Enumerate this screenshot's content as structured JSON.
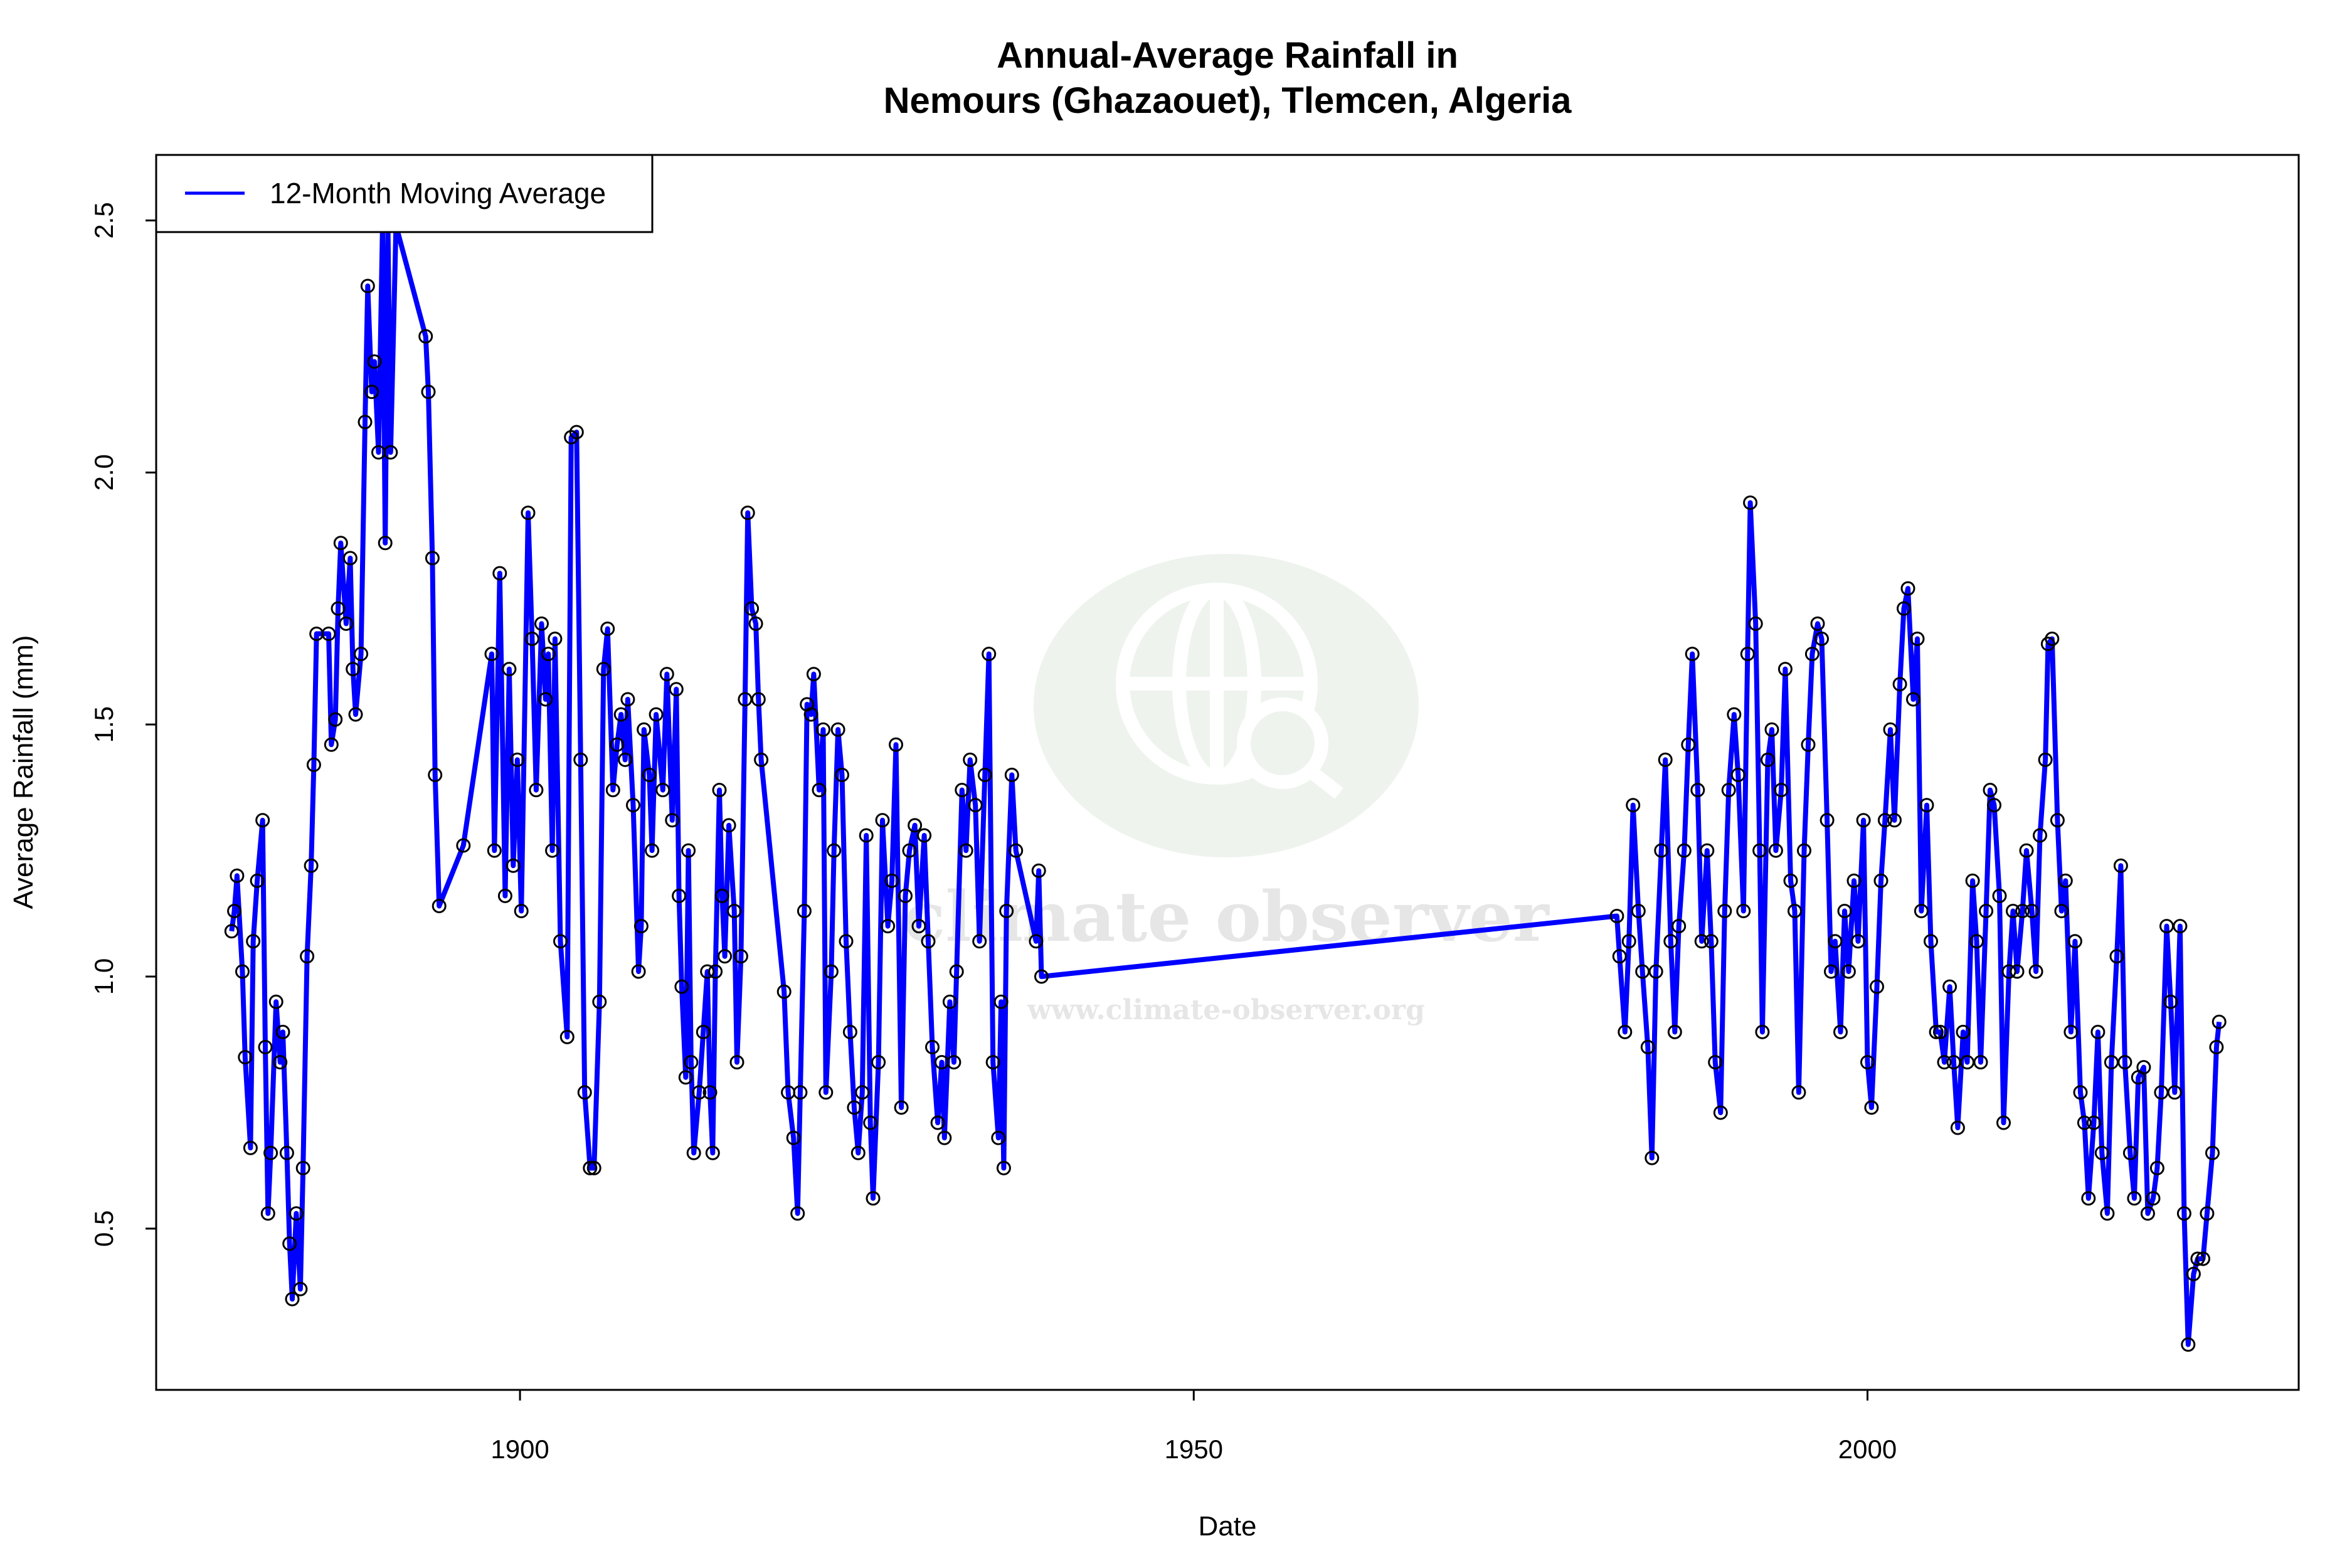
{
  "chart_data": {
    "type": "line",
    "title": "Annual-Average Rainfall in",
    "subtitle": "Nemours (Ghazaouet), Tlemcen, Algeria",
    "xlabel": "Date",
    "ylabel": "Average Rainfall (mm)",
    "xlim": [
      1873,
      2032
    ],
    "ylim": [
      0.18,
      2.63
    ],
    "x_ticks": [
      1900,
      1950,
      2000
    ],
    "x_tick_labels": [
      "1900",
      "1950",
      "2000"
    ],
    "y_ticks": [
      0.5,
      1.0,
      1.5,
      2.0,
      2.5
    ],
    "y_tick_labels": [
      "0.5",
      "1.0",
      "1.5",
      "2.0",
      "2.5"
    ],
    "grid": false,
    "legend": {
      "placement": "top-left",
      "entries": [
        "12-Month Moving Average"
      ]
    },
    "colors": {
      "line": "#0000ff",
      "points": "#000000",
      "watermark": "#eef3ee"
    },
    "watermark": {
      "text": "climate observer",
      "url": "www.climate-observer.org"
    },
    "series": [
      {
        "name": "12-Month Moving Average",
        "x": [
          1878.6,
          1878.8,
          1879.0,
          1879.4,
          1879.6,
          1880.0,
          1880.2,
          1880.5,
          1880.9,
          1881.1,
          1881.3,
          1881.5,
          1881.9,
          1882.2,
          1882.4,
          1882.7,
          1882.9,
          1883.1,
          1883.4,
          1883.7,
          1883.9,
          1884.2,
          1884.5,
          1884.7,
          1884.9,
          1885.8,
          1886.0,
          1886.3,
          1886.5,
          1886.7,
          1887.1,
          1887.4,
          1887.6,
          1887.8,
          1888.2,
          1888.5,
          1888.7,
          1889.0,
          1889.2,
          1889.5,
          1889.8,
          1890.0,
          1890.2,
          1890.4,
          1890.8,
          1893.0,
          1893.2,
          1893.5,
          1893.7,
          1894.0,
          1895.8,
          1897.9,
          1898.1,
          1898.5,
          1898.9,
          1899.2,
          1899.5,
          1899.8,
          1900.1,
          1900.6,
          1900.9,
          1901.2,
          1901.6,
          1901.9,
          1902.1,
          1902.4,
          1902.6,
          1903.0,
          1903.5,
          1903.8,
          1904.2,
          1904.5,
          1904.8,
          1905.2,
          1905.5,
          1905.9,
          1906.2,
          1906.5,
          1906.9,
          1907.2,
          1907.5,
          1907.8,
          1908.0,
          1908.4,
          1908.8,
          1909.0,
          1909.2,
          1909.6,
          1909.8,
          1910.1,
          1910.6,
          1910.9,
          1911.3,
          1911.6,
          1911.8,
          1912.0,
          1912.3,
          1912.5,
          1912.7,
          1912.9,
          1913.3,
          1913.6,
          1913.9,
          1914.1,
          1914.3,
          1914.5,
          1914.8,
          1915.0,
          1915.2,
          1915.5,
          1915.9,
          1916.1,
          1916.4,
          1916.7,
          1916.9,
          1917.2,
          1917.5,
          1917.7,
          1917.9,
          1919.6,
          1919.9,
          1920.3,
          1920.6,
          1920.8,
          1921.1,
          1921.3,
          1921.6,
          1921.8,
          1922.2,
          1922.5,
          1922.7,
          1923.1,
          1923.3,
          1923.6,
          1923.9,
          1924.2,
          1924.5,
          1924.8,
          1925.1,
          1925.4,
          1925.7,
          1926.0,
          1926.2,
          1926.6,
          1926.9,
          1927.3,
          1927.6,
          1927.9,
          1928.3,
          1928.6,
          1928.9,
          1929.3,
          1929.6,
          1930.0,
          1930.3,
          1930.6,
          1931.0,
          1931.3,
          1931.5,
          1931.9,
          1932.2,
          1932.4,
          1932.8,
          1933.1,
          1933.4,
          1933.8,
          1934.1,
          1934.5,
          1934.8,
          1935.1,
          1935.5,
          1935.7,
          1935.9,
          1936.1,
          1936.5,
          1936.8,
          1938.3,
          1938.5,
          1938.7,
          1981.4,
          1981.6,
          1982.0,
          1982.3,
          1982.6,
          1983.0,
          1983.3,
          1983.7,
          1984.0,
          1984.3,
          1984.7,
          1985.0,
          1985.4,
          1985.7,
          1986.0,
          1986.4,
          1986.7,
          1987.0,
          1987.4,
          1987.7,
          1988.1,
          1988.4,
          1988.7,
          1989.1,
          1989.4,
          1989.7,
          1990.1,
          1990.4,
          1990.8,
          1991.1,
          1991.3,
          1991.7,
          1992.0,
          1992.2,
          1992.6,
          1992.9,
          1993.2,
          1993.6,
          1993.9,
          1994.3,
          1994.6,
          1994.9,
          1995.3,
          1995.6,
          1995.9,
          1996.3,
          1996.6,
          1997.0,
          1997.3,
          1997.6,
          1998.0,
          1998.3,
          1998.6,
          1999.0,
          1999.3,
          1999.7,
          2000.0,
          2000.3,
          2000.7,
          2001.0,
          2001.3,
          2001.7,
          2002.0,
          2002.4,
          2002.7,
          2003.0,
          2003.4,
          2003.7,
          2004.0,
          2004.4,
          2004.7,
          2005.1,
          2005.4,
          2005.7,
          2006.1,
          2006.4,
          2006.7,
          2007.1,
          2007.4,
          2007.8,
          2008.1,
          2008.4,
          2008.8,
          2009.1,
          2009.4,
          2009.8,
          2010.1,
          2010.5,
          2010.8,
          2011.1,
          2011.5,
          2011.8,
          2012.2,
          2012.5,
          2012.8,
          2013.2,
          2013.4,
          2013.7,
          2014.1,
          2014.4,
          2014.7,
          2015.1,
          2015.4,
          2015.8,
          2016.1,
          2016.4,
          2016.8,
          2017.1,
          2017.4,
          2017.8,
          2018.1,
          2018.5,
          2018.8,
          2019.1,
          2019.5,
          2019.8,
          2020.1,
          2020.5,
          2020.8,
          2021.2,
          2021.5,
          2021.8,
          2022.2,
          2022.5,
          2022.8,
          2023.2,
          2023.5,
          2023.8,
          2024.2,
          2024.5,
          2024.9,
          2025.2,
          2025.6,
          2025.9,
          2026.1
        ],
        "y": [
          1.09,
          1.13,
          1.2,
          1.01,
          0.84,
          0.66,
          1.07,
          1.19,
          1.31,
          0.86,
          0.53,
          0.65,
          0.95,
          0.83,
          0.89,
          0.65,
          0.47,
          0.36,
          0.53,
          0.38,
          0.62,
          1.04,
          1.22,
          1.42,
          1.68,
          1.68,
          1.46,
          1.51,
          1.73,
          1.86,
          1.7,
          1.83,
          1.61,
          1.52,
          1.64,
          2.1,
          2.37,
          2.16,
          2.22,
          2.04,
          2.49,
          1.86,
          2.49,
          2.04,
          2.49,
          2.27,
          2.16,
          1.83,
          1.4,
          1.14,
          1.26,
          1.64,
          1.25,
          1.8,
          1.16,
          1.61,
          1.22,
          1.43,
          1.13,
          1.92,
          1.67,
          1.37,
          1.7,
          1.55,
          1.64,
          1.25,
          1.67,
          1.07,
          0.88,
          2.07,
          2.08,
          1.43,
          0.77,
          0.62,
          0.62,
          0.95,
          1.61,
          1.69,
          1.37,
          1.46,
          1.52,
          1.43,
          1.55,
          1.34,
          1.01,
          1.1,
          1.49,
          1.4,
          1.25,
          1.52,
          1.37,
          1.6,
          1.31,
          1.57,
          1.16,
          0.98,
          0.8,
          1.25,
          0.83,
          0.65,
          0.77,
          0.89,
          1.01,
          0.77,
          0.65,
          1.01,
          1.37,
          1.16,
          1.04,
          1.3,
          1.13,
          0.83,
          1.04,
          1.55,
          1.92,
          1.73,
          1.7,
          1.55,
          1.43,
          0.97,
          0.77,
          0.68,
          0.53,
          0.77,
          1.13,
          1.54,
          1.52,
          1.6,
          1.37,
          1.49,
          0.77,
          1.01,
          1.25,
          1.49,
          1.4,
          1.07,
          0.89,
          0.74,
          0.65,
          0.77,
          1.28,
          0.71,
          0.56,
          0.83,
          1.31,
          1.1,
          1.19,
          1.46,
          0.74,
          1.16,
          1.25,
          1.3,
          1.1,
          1.28,
          1.07,
          0.86,
          0.71,
          0.83,
          0.68,
          0.95,
          0.83,
          1.01,
          1.37,
          1.25,
          1.43,
          1.34,
          1.07,
          1.4,
          1.64,
          0.83,
          0.68,
          0.95,
          0.62,
          1.13,
          1.4,
          1.25,
          1.07,
          1.21,
          1.0,
          1.12,
          1.04,
          0.89,
          1.07,
          1.34,
          1.13,
          1.01,
          0.86,
          0.64,
          1.01,
          1.25,
          1.43,
          1.07,
          0.89,
          1.1,
          1.25,
          1.46,
          1.64,
          1.37,
          1.07,
          1.25,
          1.07,
          0.83,
          0.73,
          1.13,
          1.37,
          1.52,
          1.4,
          1.13,
          1.64,
          1.94,
          1.7,
          1.25,
          0.89,
          1.43,
          1.49,
          1.25,
          1.37,
          1.61,
          1.19,
          1.13,
          0.77,
          1.25,
          1.46,
          1.64,
          1.7,
          1.67,
          1.31,
          1.01,
          1.07,
          0.89,
          1.13,
          1.01,
          1.19,
          1.07,
          1.31,
          0.83,
          0.74,
          0.98,
          1.19,
          1.31,
          1.49,
          1.31,
          1.58,
          1.73,
          1.77,
          1.55,
          1.67,
          1.13,
          1.34,
          1.07,
          0.89,
          0.89,
          0.83,
          0.98,
          0.83,
          0.7,
          0.89,
          0.83,
          1.19,
          1.07,
          0.83,
          1.13,
          1.37,
          1.34,
          1.16,
          0.71,
          1.01,
          1.13,
          1.01,
          1.13,
          1.25,
          1.13,
          1.01,
          1.28,
          1.43,
          1.66,
          1.67,
          1.31,
          1.13,
          1.19,
          0.89,
          1.07,
          0.77,
          0.71,
          0.56,
          0.71,
          0.89,
          0.65,
          0.53,
          0.83,
          1.04,
          1.22,
          0.83,
          0.65,
          0.56,
          0.8,
          0.82,
          0.53,
          0.56,
          0.62,
          0.77,
          1.1,
          0.95,
          0.77,
          1.1,
          0.53,
          0.27,
          0.41,
          0.44,
          0.44,
          0.53,
          0.65,
          0.86,
          0.91
        ]
      }
    ]
  }
}
